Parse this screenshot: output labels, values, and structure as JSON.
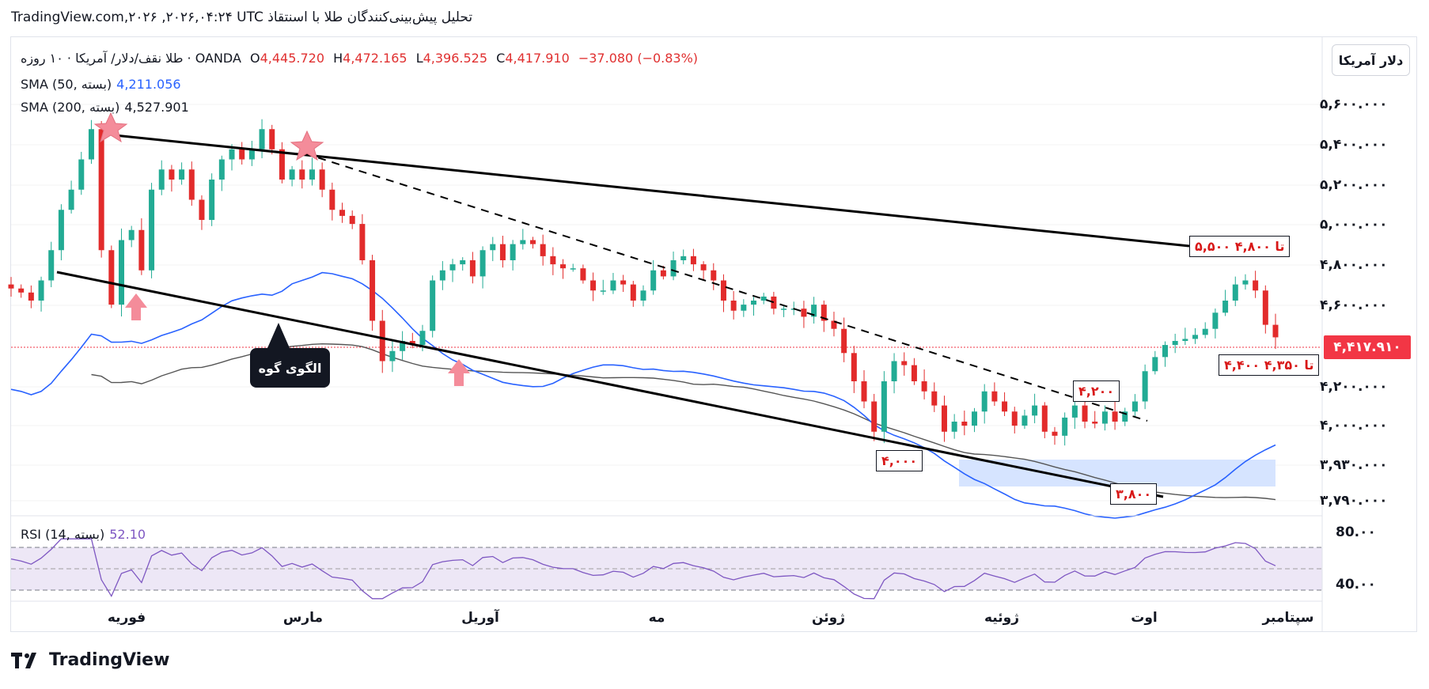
{
  "header": {
    "title": "TradingView.com,۲۰۲۶ ,۲۰۲۶,۰۴:۲۴ UTC تحلیل پیش‌بینی‌کنندگان طلا با اسنتقاذ"
  },
  "legend": {
    "symbol": "طلا نقف/دلار/ آمریکا · ۱۰ روزه · OANDA",
    "o_label": "O",
    "o_value": "4,445.720",
    "h_label": "H",
    "h_value": "4,472.165",
    "l_label": "L",
    "l_value": "4,396.525",
    "c_label": "C",
    "c_value": "4,417.910",
    "change": "−37.080 (−0.83%)",
    "sma50_label": "SMA (50, بسته)",
    "sma50_value": "4,211.056",
    "sma200_label": "SMA (200, بسته)",
    "sma200_value": "4,527.901",
    "rsi_label": "RSI (14, بسته)",
    "rsi_value": "52.10"
  },
  "price_axis": {
    "unit_button": "دلار آمریکا",
    "ticks": [
      "۵,۶۰۰.۰۰۰",
      "۵,۴۰۰.۰۰۰",
      "۵,۲۰۰.۰۰۰",
      "۵,۰۰۰.۰۰۰",
      "۴,۸۰۰.۰۰۰",
      "۴,۶۰۰.۰۰۰",
      "۴,۲۰۰.۰۰۰",
      "۴,۰۰۰.۰۰۰",
      "۳,۹۳۰.۰۰۰",
      "۳,۷۹۰.۰۰۰"
    ],
    "current_price": "۴,۴۱۷.۹۱۰",
    "rsi_ticks": [
      "80.۰۰",
      "40.۰۰"
    ]
  },
  "time_axis": {
    "ticks": [
      "فوریه",
      "مارس",
      "آوریل",
      "مه",
      "ژوئن",
      "ژوئیه",
      "اوت",
      "سپتامبر"
    ]
  },
  "annotations": {
    "target_upper": "۵,۵۰۰ تا ۴,۸۰۰",
    "target_mid": "۴,۴۰۰ تا ۴,۳۵۰",
    "level_4200": "۴,۲۰۰",
    "level_4000": "۴,۰۰۰",
    "level_3800": "۳,۸۰۰",
    "wedge_label": "الگوی گوه"
  },
  "colors": {
    "up": "#22ab94",
    "down": "#e22b2b",
    "sma50": "#2962ff",
    "sma200": "#555555",
    "rsi": "#7e57c2",
    "marker": "#f48c9a",
    "zone": "#d6e4ff"
  },
  "chart_data": {
    "type": "candlestick",
    "symbol": "XAUUSD",
    "timeframe": "10D",
    "x_ticks": [
      "فوریه",
      "مارس",
      "آوریل",
      "مه",
      "ژوئن",
      "ژوئیه",
      "اوت",
      "سپتامبر"
    ],
    "ohlc_last": {
      "open": 4445.72,
      "high": 4472.165,
      "low": 4396.525,
      "close": 4417.91,
      "change": -37.08,
      "change_pct": -0.83
    },
    "sma50_last": 4211.056,
    "sma200_last": 4527.901,
    "rsi_last": 52.1,
    "rsi_levels": [
      70,
      50,
      30
    ],
    "closes": [
      4660,
      4640,
      4600,
      4700,
      4850,
      5050,
      5150,
      5300,
      5450,
      4850,
      4580,
      4900,
      4950,
      4750,
      5150,
      5250,
      5200,
      5250,
      5100,
      5000,
      5200,
      5300,
      5350,
      5300,
      5350,
      5450,
      5350,
      5200,
      5250,
      5200,
      5250,
      5150,
      5050,
      5020,
      4980,
      4800,
      4500,
      4300,
      4350,
      4400,
      4380,
      4450,
      4700,
      4750,
      4780,
      4800,
      4720,
      4850,
      4880,
      4800,
      4880,
      4900,
      4880,
      4820,
      4780,
      4760,
      4760,
      4700,
      4650,
      4650,
      4700,
      4680,
      4600,
      4650,
      4750,
      4720,
      4800,
      4820,
      4780,
      4750,
      4700,
      4600,
      4550,
      4580,
      4600,
      4620,
      4560,
      4560,
      4560,
      4520,
      4580,
      4500,
      4460,
      4340,
      4200,
      4100,
      3950,
      4200,
      4300,
      4280,
      4200,
      4150,
      4080,
      3950,
      4000,
      3980,
      4050,
      4150,
      4100,
      4050,
      3980,
      4030,
      4080,
      3950,
      3930,
      4020,
      4080,
      4000,
      3990,
      4050,
      4000,
      4050,
      4100,
      4250,
      4320,
      4380,
      4400,
      4410,
      4430,
      4460,
      4540,
      4600,
      4680,
      4700,
      4650,
      4480,
      4417.91
    ]
  }
}
